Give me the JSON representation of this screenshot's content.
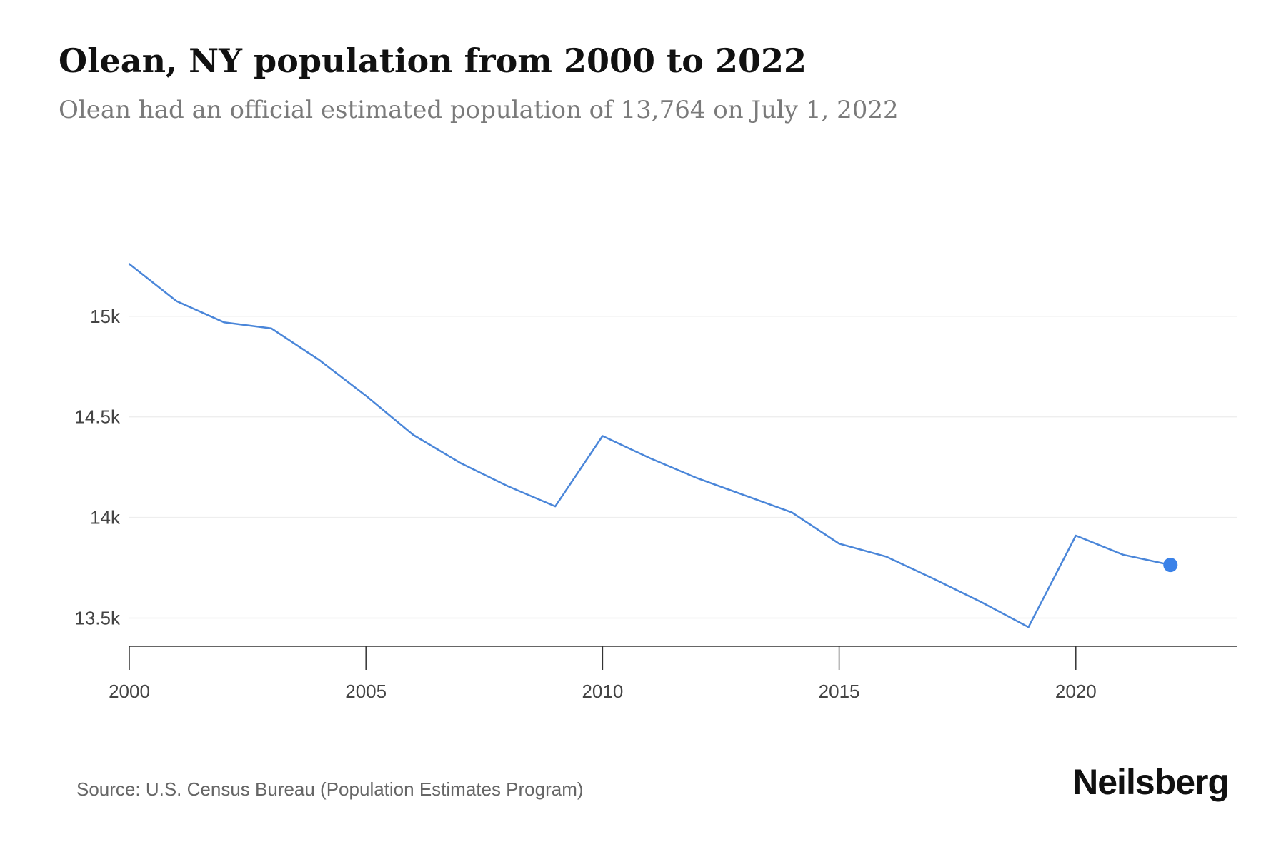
{
  "header": {
    "title": "Olean, NY population from 2000 to 2022",
    "subtitle": "Olean had an official estimated population of 13,764 on July 1, 2022"
  },
  "footer": {
    "source": "Source: U.S. Census Bureau (Population Estimates Program)",
    "brand": "Neilsberg"
  },
  "colors": {
    "line": "#4a86d9",
    "marker": "#3b82e8",
    "grid": "#eeeeee",
    "axis": "#333333"
  },
  "chart_data": {
    "type": "line",
    "title": "Olean, NY population from 2000 to 2022",
    "xlabel": "",
    "ylabel": "",
    "x": [
      2000,
      2001,
      2002,
      2003,
      2004,
      2005,
      2006,
      2007,
      2008,
      2009,
      2010,
      2011,
      2012,
      2013,
      2014,
      2015,
      2016,
      2017,
      2018,
      2019,
      2020,
      2021,
      2022
    ],
    "series": [
      {
        "name": "Population",
        "values": [
          15260,
          15075,
          14970,
          14940,
          14785,
          14605,
          14410,
          14270,
          14155,
          14055,
          14405,
          14295,
          14195,
          14110,
          14025,
          13870,
          13805,
          13695,
          13580,
          13455,
          13910,
          13815,
          13764
        ]
      }
    ],
    "xlim": [
      2000,
      2023.4
    ],
    "ylim": [
      13360,
      15620
    ],
    "x_ticks": [
      2000,
      2005,
      2010,
      2015,
      2020
    ],
    "x_tick_labels": [
      "2000",
      "2005",
      "2010",
      "2015",
      "2020"
    ],
    "y_ticks": [
      13500,
      14000,
      14500,
      15000
    ],
    "y_tick_labels": [
      "13.5k",
      "14k",
      "14.5k",
      "15k"
    ],
    "grid": true,
    "last_point_marker": true
  }
}
